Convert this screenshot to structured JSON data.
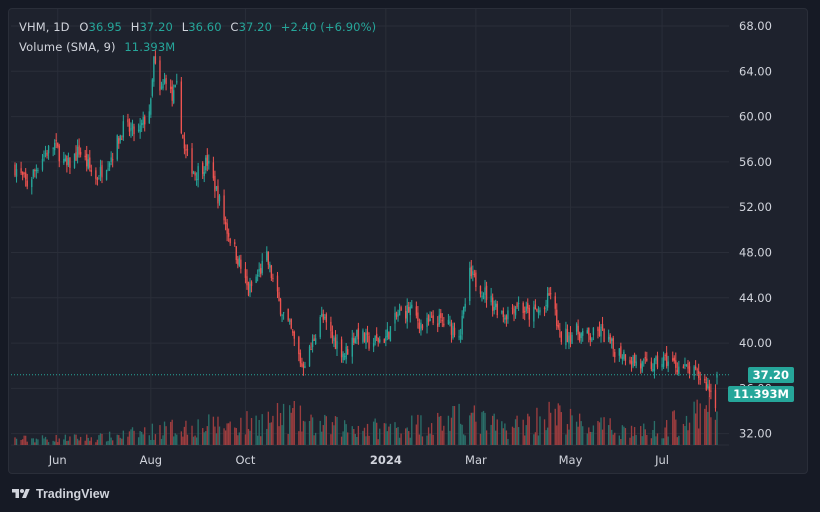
{
  "legend": {
    "symbol": "VHM, 1D",
    "open_label": "O",
    "open": "36.95",
    "high_label": "H",
    "high": "37.20",
    "low_label": "L",
    "low": "36.60",
    "close_label": "C",
    "close": "37.20",
    "change": "+2.40 (+6.90%)",
    "volume_label": "Volume (SMA, 9)",
    "volume_value": "11.393M"
  },
  "price_badge": "37.20",
  "volume_badge": "11.393M",
  "footer": {
    "brand": "TradingView"
  },
  "colors": {
    "up": "#26a69a",
    "down": "#ef5350",
    "background": "#1e222d",
    "grid": "#2a2e39",
    "text": "#d1d4dc",
    "price_line": "#26a69a",
    "volume_up": "#2a6f69",
    "volume_down": "#9c3d3f"
  },
  "icons": {
    "logo": "tradingview-logo-icon"
  },
  "chart_data": {
    "type": "candlestick",
    "title": "",
    "xlabel": "",
    "ylabel": "",
    "ylim": [
      31,
      69.5
    ],
    "y_ticks": [
      32,
      36,
      40,
      44,
      48,
      52,
      56,
      60,
      64,
      68
    ],
    "y_tick_labels": [
      "32.00",
      "36.00",
      "40.00",
      "44.00",
      "48.00",
      "52.00",
      "56.00",
      "60.00",
      "64.00",
      "68.00"
    ],
    "x_ticks": [
      {
        "label": "Jun",
        "bold": false,
        "date": "2023-06-01"
      },
      {
        "label": "Aug",
        "bold": false,
        "date": "2023-08-01"
      },
      {
        "label": "Oct",
        "bold": false,
        "date": "2023-10-02"
      },
      {
        "label": "2024",
        "bold": true,
        "date": "2024-01-02"
      },
      {
        "label": "Mar",
        "bold": false,
        "date": "2024-03-01"
      },
      {
        "label": "May",
        "bold": false,
        "date": "2024-05-02"
      },
      {
        "label": "Jul",
        "bold": false,
        "date": "2024-07-01"
      }
    ],
    "last_price": 37.2,
    "volume_scale_max_millions": 20,
    "series": [
      {
        "name": "VHM",
        "close_anchors": [
          [
            "2023-05-04",
            55.5
          ],
          [
            "2023-05-12",
            54.0
          ],
          [
            "2023-05-22",
            56.5
          ],
          [
            "2023-05-30",
            57.5
          ],
          [
            "2023-06-07",
            55.5
          ],
          [
            "2023-06-15",
            57.0
          ],
          [
            "2023-06-26",
            54.5
          ],
          [
            "2023-07-06",
            56.5
          ],
          [
            "2023-07-14",
            59.0
          ],
          [
            "2023-07-24",
            58.5
          ],
          [
            "2023-08-01",
            61.0
          ],
          [
            "2023-08-03",
            65.0
          ],
          [
            "2023-08-07",
            62.0
          ],
          [
            "2023-08-11",
            63.5
          ],
          [
            "2023-08-15",
            61.5
          ],
          [
            "2023-08-18",
            62.5
          ],
          [
            "2023-08-23",
            57.0
          ],
          [
            "2023-08-30",
            55.0
          ],
          [
            "2023-09-07",
            56.0
          ],
          [
            "2023-09-14",
            53.0
          ],
          [
            "2023-09-20",
            50.0
          ],
          [
            "2023-09-27",
            47.5
          ],
          [
            "2023-10-04",
            44.5
          ],
          [
            "2023-10-10",
            46.0
          ],
          [
            "2023-10-16",
            47.5
          ],
          [
            "2023-10-24",
            43.5
          ],
          [
            "2023-11-01",
            41.0
          ],
          [
            "2023-11-08",
            38.0
          ],
          [
            "2023-11-14",
            39.5
          ],
          [
            "2023-11-20",
            42.5
          ],
          [
            "2023-11-28",
            40.5
          ],
          [
            "2023-12-06",
            39.0
          ],
          [
            "2023-12-14",
            41.0
          ],
          [
            "2023-12-22",
            40.0
          ],
          [
            "2024-01-02",
            40.5
          ],
          [
            "2024-01-10",
            42.5
          ],
          [
            "2024-01-18",
            43.0
          ],
          [
            "2024-01-26",
            41.5
          ],
          [
            "2024-02-05",
            42.0
          ],
          [
            "2024-02-20",
            41.0
          ],
          [
            "2024-02-26",
            46.0
          ],
          [
            "2024-03-04",
            45.0
          ],
          [
            "2024-03-12",
            43.5
          ],
          [
            "2024-03-20",
            42.5
          ],
          [
            "2024-03-28",
            43.5
          ],
          [
            "2024-04-05",
            42.5
          ],
          [
            "2024-04-15",
            43.0
          ],
          [
            "2024-04-19",
            44.5
          ],
          [
            "2024-04-25",
            40.5
          ],
          [
            "2024-05-06",
            41.0
          ],
          [
            "2024-05-14",
            40.5
          ],
          [
            "2024-05-22",
            41.0
          ],
          [
            "2024-05-30",
            39.5
          ],
          [
            "2024-06-07",
            39.0
          ],
          [
            "2024-06-17",
            38.0
          ],
          [
            "2024-06-25",
            38.0
          ],
          [
            "2024-07-03",
            38.5
          ],
          [
            "2024-07-11",
            38.0
          ],
          [
            "2024-07-19",
            37.5
          ],
          [
            "2024-07-26",
            37.0
          ],
          [
            "2024-08-01",
            36.0
          ],
          [
            "2024-08-05",
            34.8
          ],
          [
            "2024-08-06",
            37.2
          ]
        ]
      },
      {
        "name": "Volume (SMA, 9)",
        "volume_anchors_millions": [
          [
            "2023-05-04",
            2.0
          ],
          [
            "2023-07-01",
            2.5
          ],
          [
            "2023-08-01",
            4.5
          ],
          [
            "2023-08-20",
            6.0
          ],
          [
            "2023-10-01",
            7.0
          ],
          [
            "2023-11-01",
            9.5
          ],
          [
            "2023-11-15",
            6.5
          ],
          [
            "2024-01-01",
            5.5
          ],
          [
            "2024-02-26",
            9.0
          ],
          [
            "2024-03-20",
            5.5
          ],
          [
            "2024-04-20",
            10.0
          ],
          [
            "2024-05-10",
            6.5
          ],
          [
            "2024-06-20",
            4.5
          ],
          [
            "2024-08-06",
            11.393
          ]
        ]
      }
    ]
  }
}
